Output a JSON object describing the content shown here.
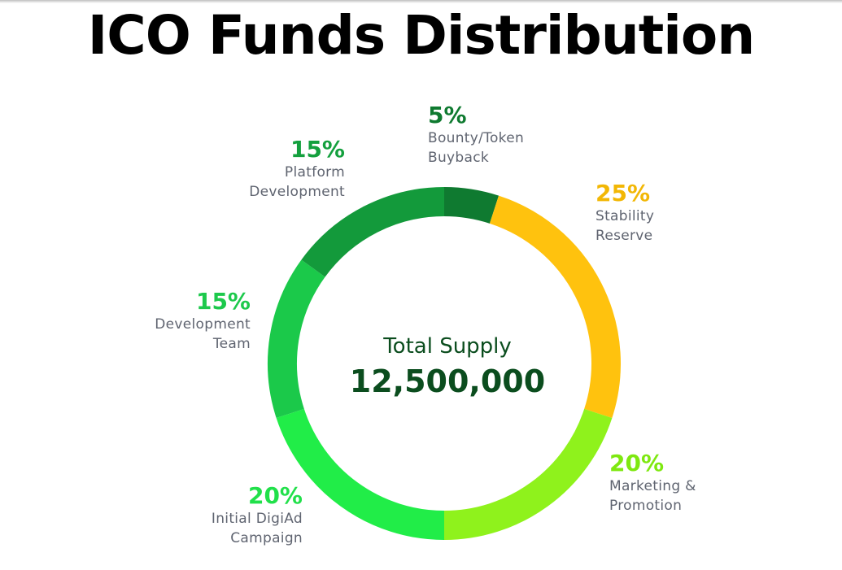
{
  "chart_data": {
    "type": "pie",
    "title": "ICO Funds Distribution",
    "center_label": "Total Supply",
    "center_value": "12,500,000",
    "slices": [
      {
        "name": "Bounty/Token Buyback",
        "label_lines": [
          "Bounty/Token",
          "Buyback"
        ],
        "value": 5,
        "value_label": "5%",
        "color": "#0f7a30",
        "label_color": "#0f7a30"
      },
      {
        "name": "Stability Reserve",
        "label_lines": [
          "Stability",
          "Reserve"
        ],
        "value": 25,
        "value_label": "25%",
        "color": "#ffc20e",
        "label_color": "#f2b705"
      },
      {
        "name": "Marketing & Promotion",
        "label_lines": [
          "Marketing &",
          "Promotion"
        ],
        "value": 20,
        "value_label": "20%",
        "color": "#8ff21c",
        "label_color": "#7ee810"
      },
      {
        "name": "Initial DigiAd Campaign",
        "label_lines": [
          "Initial DigiAd",
          "Campaign"
        ],
        "value": 20,
        "value_label": "20%",
        "color": "#21ed48",
        "label_color": "#21e04a"
      },
      {
        "name": "Development Team",
        "label_lines": [
          "Development",
          "Team"
        ],
        "value": 15,
        "value_label": "15%",
        "color": "#1bc94a",
        "label_color": "#1dc94c"
      },
      {
        "name": "Platform Development",
        "label_lines": [
          "Platform",
          "Development"
        ],
        "value": 15,
        "value_label": "15%",
        "color": "#139a3b",
        "label_color": "#14a03e"
      }
    ]
  }
}
